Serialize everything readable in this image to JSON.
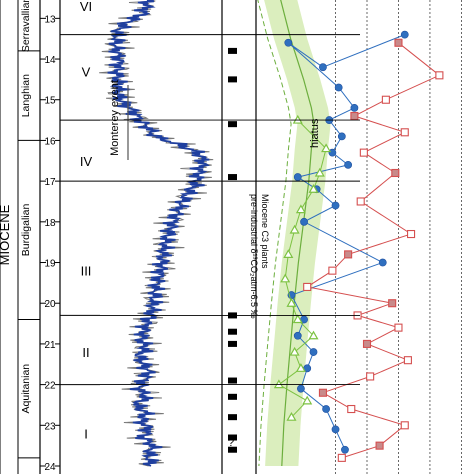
{
  "chart_data": {
    "type": "line",
    "title": "",
    "y_axis": {
      "label": "",
      "range": [
        12.5,
        24.0
      ],
      "ticks": [
        13,
        14,
        15,
        16,
        17,
        18,
        19,
        20,
        21,
        22,
        23,
        24
      ]
    },
    "epoch_label": "MIOCENE",
    "stages": [
      {
        "name": "Serravallian",
        "from": 12.5,
        "to": 13.8
      },
      {
        "name": "Langhian",
        "from": 13.8,
        "to": 16.0
      },
      {
        "name": "Burdigalian",
        "from": 16.0,
        "to": 20.4
      },
      {
        "name": "Aquitanian",
        "from": 20.4,
        "to": 23.8
      }
    ],
    "intervals": [
      {
        "label": "VI",
        "center": 12.7
      },
      {
        "label": "V",
        "center": 14.3
      },
      {
        "label": "IV",
        "center": 16.5
      },
      {
        "label": "III",
        "center": 19.2
      },
      {
        "label": "II",
        "center": 21.2
      },
      {
        "label": "I",
        "center": 23.2
      }
    ],
    "interval_boundaries": [
      13.4,
      15.5,
      17.0,
      20.3,
      22.0
    ],
    "annotations": {
      "monterey_event": "Monterey event",
      "hiatus": "hiatus",
      "band_label_line1": "Miocene C3 plants",
      "band_label_line2": "pre-industrial δ¹³CO₂atm-6.5 ‰",
      "question_mark": "?"
    },
    "marker_ages": [
      13.8,
      14.5,
      15.6,
      16.9,
      20.3,
      20.7,
      21.0,
      21.9,
      22.3,
      22.8,
      23.3,
      23.6
    ],
    "benthic_isotope_series": {
      "name": "",
      "color": "#1f3f9f",
      "age": [
        12.5,
        12.7,
        12.9,
        13.1,
        13.3,
        13.5,
        13.7,
        13.9,
        14.1,
        14.3,
        14.5,
        14.7,
        14.9,
        15.1,
        15.3,
        15.5,
        15.7,
        15.9,
        16.1,
        16.3,
        16.5,
        16.7,
        16.9,
        17.1,
        17.3,
        17.6,
        18.0,
        18.4,
        18.8,
        19.2,
        19.6,
        20.0,
        20.3,
        20.5,
        20.7,
        20.9,
        21.1,
        21.3,
        21.5,
        21.7,
        21.9,
        22.1,
        22.3,
        22.5,
        22.7,
        22.9,
        23.1,
        23.3,
        23.5,
        23.7,
        24.0
      ],
      "value": [
        0.3,
        0.28,
        0.25,
        0.12,
        0.05,
        0.04,
        0.03,
        0.05,
        0.06,
        0.04,
        0.05,
        0.06,
        0.05,
        0.1,
        0.18,
        0.22,
        0.3,
        0.35,
        0.55,
        0.7,
        0.75,
        0.72,
        0.7,
        0.68,
        0.62,
        0.56,
        0.5,
        0.45,
        0.42,
        0.4,
        0.36,
        0.34,
        0.32,
        0.28,
        0.26,
        0.24,
        0.28,
        0.22,
        0.26,
        0.3,
        0.26,
        0.22,
        0.28,
        0.2,
        0.28,
        0.24,
        0.3,
        0.25,
        0.34,
        0.3,
        0.32
      ]
    },
    "band_series": {
      "color": "#b5d98a",
      "age": [
        12.5,
        13.5,
        14.5,
        15.2,
        15.6,
        16.2,
        17.0,
        18.0,
        19.0,
        20.0,
        21.0,
        22.0,
        23.0,
        24.0
      ],
      "center": [
        0.35,
        0.55,
        0.8,
        0.95,
        1.0,
        0.95,
        0.9,
        0.8,
        0.7,
        0.62,
        0.55,
        0.48,
        0.42,
        0.38
      ],
      "half_width": 0.32
    },
    "series": [
      {
        "name": "",
        "color": "#2f6fbf",
        "marker": "circle",
        "age": [
          13.4,
          14.2,
          13.6,
          14.7,
          15.2,
          15.5,
          15.9,
          16.3,
          16.6,
          16.9,
          17.2,
          17.6,
          18.0,
          19.0,
          19.8,
          20.4,
          20.8,
          21.2,
          21.6,
          22.1,
          22.6,
          23.1,
          23.6
        ],
        "value": [
          9.2,
          6.6,
          5.5,
          7.1,
          7.6,
          6.8,
          7.2,
          6.9,
          7.4,
          5.8,
          6.4,
          7.0,
          6.0,
          8.5,
          5.6,
          6.0,
          5.8,
          6.3,
          6.1,
          5.9,
          6.7,
          7.0,
          7.3
        ]
      },
      {
        "name": "",
        "color": "#d54f4f",
        "marker": "square",
        "age": [
          13.6,
          14.4,
          15.0,
          15.4,
          15.8,
          16.3,
          16.8,
          17.5,
          18.3,
          18.8,
          19.2,
          19.6,
          20.0,
          20.3,
          20.6,
          21.0,
          21.4,
          21.8,
          22.2,
          22.6,
          23.0,
          23.5,
          23.8
        ],
        "value": [
          9.0,
          10.3,
          8.6,
          7.6,
          9.2,
          7.9,
          8.9,
          7.8,
          9.4,
          7.4,
          6.9,
          6.1,
          8.8,
          7.7,
          9.0,
          8.0,
          9.3,
          8.1,
          6.6,
          7.5,
          9.2,
          8.4,
          7.2
        ]
      },
      {
        "name": "",
        "color": "#7dc242",
        "marker": "triangle",
        "age": [
          15.5,
          16.2,
          16.8,
          17.2,
          17.7,
          18.2,
          18.8,
          19.4,
          20.0,
          20.4,
          20.8,
          21.2,
          21.6,
          22.0,
          22.4,
          22.8
        ],
        "value": [
          5.8,
          6.7,
          6.5,
          6.3,
          5.9,
          5.7,
          5.5,
          5.4,
          5.6,
          5.8,
          6.3,
          5.7,
          5.9,
          5.2,
          6.1,
          5.6
        ]
      }
    ]
  }
}
